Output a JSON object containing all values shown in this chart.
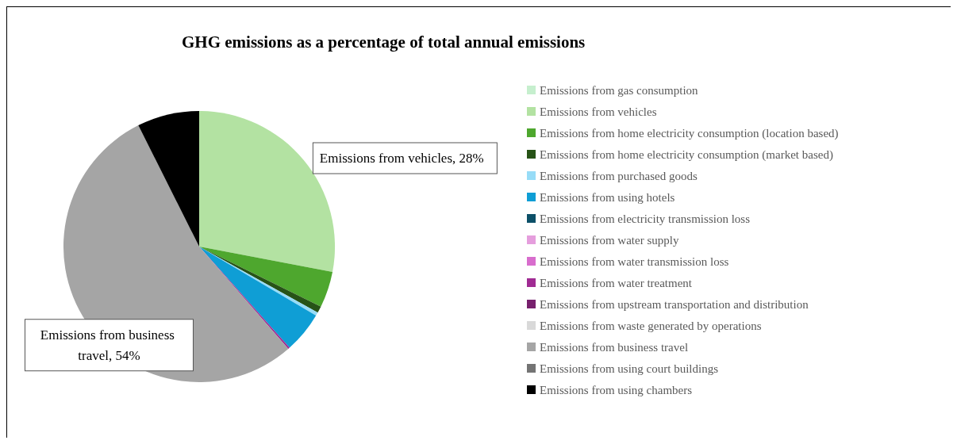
{
  "chart_data": {
    "type": "pie",
    "title": "GHG emissions as a percentage of total annual emissions",
    "categories": [
      "Emissions from gas consumption",
      "Emissions from vehicles",
      "Emissions from home electricity consumption (location based)",
      "Emissions from home electricity consumption (market based)",
      "Emissions from purchased goods",
      "Emissions from using hotels",
      "Emissions from electricity transmission loss",
      "Emissions from water supply",
      "Emissions from water transmission loss",
      "Emissions from water treatment",
      "Emissions from upstream transportation and distribution",
      "Emissions from waste generated by operations",
      "Emissions from business travel",
      "Emissions from using court buildings",
      "Emissions from using chambers"
    ],
    "values": [
      0,
      28,
      4.3,
      0.8,
      0.4,
      4.9,
      0,
      0,
      0,
      0.2,
      0,
      0,
      54,
      0,
      7.4
    ],
    "colors": [
      "#c6efce",
      "#b3e2a2",
      "#4ea72e",
      "#275317",
      "#97dcf7",
      "#0f9ed5",
      "#0c5068",
      "#e59edd",
      "#d86dcd",
      "#a02b93",
      "#77206d",
      "#d9d9d9",
      "#a5a5a5",
      "#747474",
      "#000000"
    ],
    "value_labels": [
      null,
      "Emissions from vehicles, 28%",
      null,
      null,
      null,
      null,
      null,
      null,
      null,
      null,
      null,
      null,
      "Emissions from business travel, 54%",
      null,
      null
    ],
    "legend": "right"
  }
}
